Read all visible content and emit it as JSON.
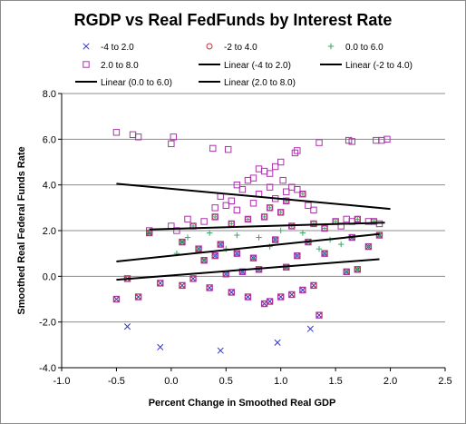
{
  "chart_data": {
    "type": "scatter",
    "title": "RGDP vs Real FedFunds by Interest Rate",
    "xlabel": "Percent Change in Smoothed Real GDP",
    "ylabel": "Smoothed Real Federal Funds Rate",
    "xlim": [
      -1.0,
      2.5
    ],
    "ylim": [
      -4.0,
      8.0
    ],
    "x_ticks": [
      "-1.0",
      "-0.5",
      "0.0",
      "0.5",
      "1.0",
      "1.5",
      "2.0",
      "2.5"
    ],
    "y_ticks": [
      "-4.0",
      "-2.0",
      "0.0",
      "2.0",
      "4.0",
      "6.0",
      "8.0"
    ],
    "grid": "horizontal",
    "legend_position": "top",
    "legend": [
      {
        "label": "-4 to 2.0",
        "marker": "x",
        "color": "#3333cc"
      },
      {
        "label": "-2 to 4.0",
        "marker": "circle",
        "color": "#cc3333"
      },
      {
        "label": "0.0 to 6.0",
        "marker": "plus",
        "color": "#33aa66"
      },
      {
        "label": "2.0 to 8.0",
        "marker": "square",
        "color": "#aa33aa"
      },
      {
        "label": "Linear (-4 to 2.0)",
        "marker": "line",
        "color": "#000000"
      },
      {
        "label": "Linear (-2 to 4.0)",
        "marker": "line",
        "color": "#000000"
      },
      {
        "label": "Linear (0.0 to 6.0)",
        "marker": "line",
        "color": "#000000"
      },
      {
        "label": "Linear (2.0 to 8.0)",
        "marker": "line",
        "color": "#000000"
      }
    ],
    "series": [
      {
        "name": "-4 to 2.0",
        "marker": "x",
        "color": "#3333cc",
        "points": [
          [
            -0.5,
            -1.0
          ],
          [
            -0.4,
            -2.2
          ],
          [
            -0.1,
            -3.1
          ],
          [
            0.45,
            -3.25
          ],
          [
            0.97,
            -2.9
          ],
          [
            1.27,
            -2.3
          ],
          [
            -0.3,
            -0.9
          ],
          [
            -0.1,
            -0.3
          ],
          [
            0.1,
            -0.4
          ],
          [
            0.2,
            -0.1
          ],
          [
            0.35,
            -0.5
          ],
          [
            0.55,
            -0.7
          ],
          [
            0.7,
            -0.9
          ],
          [
            0.85,
            -1.2
          ],
          [
            0.9,
            -1.1
          ],
          [
            1.0,
            -0.9
          ],
          [
            1.1,
            -0.8
          ],
          [
            1.2,
            -0.6
          ],
          [
            1.3,
            -0.4
          ],
          [
            1.35,
            -1.7
          ],
          [
            -0.4,
            -0.1
          ],
          [
            0.5,
            0.1
          ],
          [
            0.65,
            0.2
          ],
          [
            0.8,
            0.3
          ],
          [
            1.05,
            0.4
          ],
          [
            1.6,
            0.2
          ],
          [
            1.7,
            0.3
          ],
          [
            0.3,
            0.7
          ],
          [
            0.4,
            0.9
          ],
          [
            0.6,
            1.0
          ],
          [
            0.75,
            0.8
          ],
          [
            1.15,
            0.9
          ],
          [
            1.4,
            1.0
          ],
          [
            1.8,
            1.3
          ],
          [
            -0.2,
            1.9
          ],
          [
            0.1,
            1.5
          ],
          [
            0.25,
            1.2
          ],
          [
            0.45,
            1.4
          ],
          [
            0.95,
            1.6
          ],
          [
            1.25,
            1.5
          ],
          [
            1.65,
            1.7
          ],
          [
            1.9,
            1.8
          ]
        ]
      },
      {
        "name": "-2 to 4.0",
        "marker": "circle",
        "color": "#cc3333",
        "points": [
          [
            -0.5,
            -1.0
          ],
          [
            -0.3,
            -0.9
          ],
          [
            -0.1,
            -0.3
          ],
          [
            0.1,
            -0.4
          ],
          [
            0.2,
            -0.1
          ],
          [
            0.35,
            -0.5
          ],
          [
            0.55,
            -0.7
          ],
          [
            0.7,
            -0.9
          ],
          [
            0.85,
            -1.2
          ],
          [
            0.9,
            -1.1
          ],
          [
            1.0,
            -0.9
          ],
          [
            1.1,
            -0.8
          ],
          [
            1.2,
            -0.6
          ],
          [
            1.3,
            -0.4
          ],
          [
            1.35,
            -1.7
          ],
          [
            -0.4,
            -0.1
          ],
          [
            0.5,
            0.1
          ],
          [
            0.65,
            0.2
          ],
          [
            0.8,
            0.3
          ],
          [
            1.05,
            0.4
          ],
          [
            1.6,
            0.2
          ],
          [
            1.7,
            0.3
          ],
          [
            0.3,
            0.7
          ],
          [
            0.4,
            0.9
          ],
          [
            0.6,
            1.0
          ],
          [
            0.75,
            0.8
          ],
          [
            1.15,
            0.9
          ],
          [
            1.4,
            1.0
          ],
          [
            1.8,
            1.3
          ],
          [
            -0.2,
            1.9
          ],
          [
            0.1,
            1.5
          ],
          [
            0.25,
            1.2
          ],
          [
            0.45,
            1.4
          ],
          [
            0.95,
            1.6
          ],
          [
            1.25,
            1.5
          ],
          [
            1.65,
            1.7
          ],
          [
            1.9,
            1.8
          ],
          [
            0.55,
            2.3
          ],
          [
            0.7,
            2.5
          ],
          [
            0.85,
            2.6
          ],
          [
            1.0,
            2.8
          ],
          [
            1.1,
            2.2
          ],
          [
            1.3,
            2.3
          ],
          [
            1.5,
            2.4
          ],
          [
            1.7,
            2.5
          ],
          [
            0.2,
            2.2
          ],
          [
            0.4,
            2.6
          ],
          [
            0.9,
            3.0
          ],
          [
            1.05,
            3.3
          ],
          [
            1.2,
            3.6
          ],
          [
            1.4,
            2.1
          ],
          [
            1.85,
            2.4
          ]
        ]
      },
      {
        "name": "0.0 to 6.0",
        "marker": "plus",
        "color": "#33aa66",
        "points": [
          [
            -0.2,
            1.9
          ],
          [
            0.1,
            1.5
          ],
          [
            0.25,
            1.2
          ],
          [
            0.45,
            1.4
          ],
          [
            0.95,
            1.6
          ],
          [
            1.25,
            1.5
          ],
          [
            1.65,
            1.7
          ],
          [
            1.9,
            1.8
          ],
          [
            0.3,
            0.7
          ],
          [
            0.4,
            0.9
          ],
          [
            0.6,
            1.0
          ],
          [
            0.75,
            0.8
          ],
          [
            1.15,
            0.9
          ],
          [
            1.4,
            1.0
          ],
          [
            1.8,
            1.3
          ],
          [
            0.5,
            0.1
          ],
          [
            0.65,
            0.2
          ],
          [
            0.8,
            0.3
          ],
          [
            1.05,
            0.4
          ],
          [
            1.6,
            0.2
          ],
          [
            1.7,
            0.3
          ],
          [
            0.55,
            2.3
          ],
          [
            0.7,
            2.5
          ],
          [
            0.85,
            2.6
          ],
          [
            1.0,
            2.8
          ],
          [
            1.1,
            2.2
          ],
          [
            1.3,
            2.3
          ],
          [
            1.5,
            2.4
          ],
          [
            1.7,
            2.5
          ],
          [
            0.2,
            2.2
          ],
          [
            0.4,
            2.6
          ],
          [
            0.9,
            3.0
          ],
          [
            1.05,
            3.3
          ],
          [
            1.2,
            3.6
          ],
          [
            1.4,
            2.1
          ],
          [
            1.85,
            2.4
          ],
          [
            0.15,
            1.7
          ],
          [
            0.35,
            1.9
          ],
          [
            0.6,
            1.8
          ],
          [
            0.8,
            1.7
          ],
          [
            1.0,
            2.0
          ],
          [
            1.2,
            1.9
          ],
          [
            1.45,
            1.6
          ],
          [
            0.05,
            1.0
          ],
          [
            0.5,
            1.2
          ],
          [
            0.9,
            1.3
          ],
          [
            1.35,
            1.2
          ],
          [
            1.55,
            1.4
          ]
        ]
      },
      {
        "name": "2.0 to 8.0",
        "marker": "square",
        "color": "#aa33aa",
        "points": [
          [
            -0.5,
            -1.0
          ],
          [
            -0.3,
            -0.9
          ],
          [
            -0.1,
            -0.3
          ],
          [
            0.1,
            -0.4
          ],
          [
            0.2,
            -0.1
          ],
          [
            0.35,
            -0.5
          ],
          [
            0.55,
            -0.7
          ],
          [
            0.7,
            -0.9
          ],
          [
            0.85,
            -1.2
          ],
          [
            0.9,
            -1.1
          ],
          [
            1.0,
            -0.9
          ],
          [
            1.1,
            -0.8
          ],
          [
            1.2,
            -0.6
          ],
          [
            1.3,
            -0.4
          ],
          [
            1.35,
            -1.7
          ],
          [
            -0.4,
            -0.1
          ],
          [
            0.5,
            0.1
          ],
          [
            0.65,
            0.2
          ],
          [
            0.8,
            0.3
          ],
          [
            1.05,
            0.4
          ],
          [
            1.6,
            0.2
          ],
          [
            1.7,
            0.3
          ],
          [
            0.3,
            0.7
          ],
          [
            0.4,
            0.9
          ],
          [
            0.6,
            1.0
          ],
          [
            0.75,
            0.8
          ],
          [
            1.15,
            0.9
          ],
          [
            1.4,
            1.0
          ],
          [
            1.8,
            1.3
          ],
          [
            -0.2,
            1.9
          ],
          [
            0.1,
            1.5
          ],
          [
            0.25,
            1.2
          ],
          [
            0.45,
            1.4
          ],
          [
            0.95,
            1.6
          ],
          [
            1.25,
            1.5
          ],
          [
            1.65,
            1.7
          ],
          [
            1.9,
            1.8
          ],
          [
            0.55,
            2.3
          ],
          [
            0.7,
            2.5
          ],
          [
            0.85,
            2.6
          ],
          [
            1.0,
            2.8
          ],
          [
            1.1,
            2.2
          ],
          [
            1.3,
            2.3
          ],
          [
            1.5,
            2.4
          ],
          [
            1.7,
            2.5
          ],
          [
            0.2,
            2.2
          ],
          [
            0.4,
            2.6
          ],
          [
            0.9,
            3.0
          ],
          [
            1.05,
            3.3
          ],
          [
            1.2,
            3.6
          ],
          [
            1.4,
            2.1
          ],
          [
            1.85,
            2.4
          ],
          [
            -0.5,
            6.3
          ],
          [
            -0.35,
            6.2
          ],
          [
            -0.3,
            6.1
          ],
          [
            0.0,
            5.8
          ],
          [
            0.02,
            6.1
          ],
          [
            0.38,
            5.6
          ],
          [
            0.52,
            5.55
          ],
          [
            1.15,
            5.5
          ],
          [
            1.13,
            5.4
          ],
          [
            1.35,
            5.85
          ],
          [
            1.62,
            5.95
          ],
          [
            1.65,
            5.9
          ],
          [
            1.87,
            5.95
          ],
          [
            1.92,
            5.95
          ],
          [
            1.97,
            6.0
          ],
          [
            0.6,
            4.0
          ],
          [
            0.75,
            4.3
          ],
          [
            0.8,
            4.7
          ],
          [
            0.85,
            4.6
          ],
          [
            0.9,
            4.5
          ],
          [
            0.95,
            4.8
          ],
          [
            1.0,
            5.0
          ],
          [
            1.02,
            4.2
          ],
          [
            0.7,
            4.2
          ],
          [
            0.65,
            3.8
          ],
          [
            0.8,
            3.6
          ],
          [
            0.9,
            3.9
          ],
          [
            1.05,
            3.7
          ],
          [
            1.1,
            3.9
          ],
          [
            1.15,
            3.8
          ],
          [
            0.4,
            3.0
          ],
          [
            0.5,
            3.1
          ],
          [
            0.6,
            2.9
          ],
          [
            0.55,
            3.3
          ],
          [
            0.45,
            3.5
          ],
          [
            0.75,
            3.2
          ],
          [
            0.95,
            3.4
          ],
          [
            1.25,
            3.1
          ],
          [
            1.3,
            2.9
          ],
          [
            0.3,
            2.4
          ],
          [
            0.15,
            2.5
          ],
          [
            0.05,
            2.0
          ],
          [
            -0.2,
            2.0
          ],
          [
            0.0,
            2.2
          ],
          [
            1.6,
            2.5
          ],
          [
            1.8,
            2.4
          ],
          [
            1.9,
            2.3
          ],
          [
            1.55,
            2.2
          ],
          [
            1.65,
            2.4
          ]
        ]
      }
    ],
    "trendlines": [
      {
        "name": "Linear (-4 to 2.0)",
        "x": [
          -0.5,
          1.9
        ],
        "y": [
          -0.15,
          0.75
        ]
      },
      {
        "name": "Linear (-2 to 4.0)",
        "x": [
          -0.5,
          1.9
        ],
        "y": [
          0.65,
          1.85
        ]
      },
      {
        "name": "Linear (0.0 to 6.0)",
        "x": [
          -0.2,
          1.95
        ],
        "y": [
          2.05,
          2.35
        ]
      },
      {
        "name": "Linear (2.0 to 8.0)",
        "x": [
          -0.5,
          2.0
        ],
        "y": [
          4.05,
          2.95
        ]
      }
    ]
  }
}
